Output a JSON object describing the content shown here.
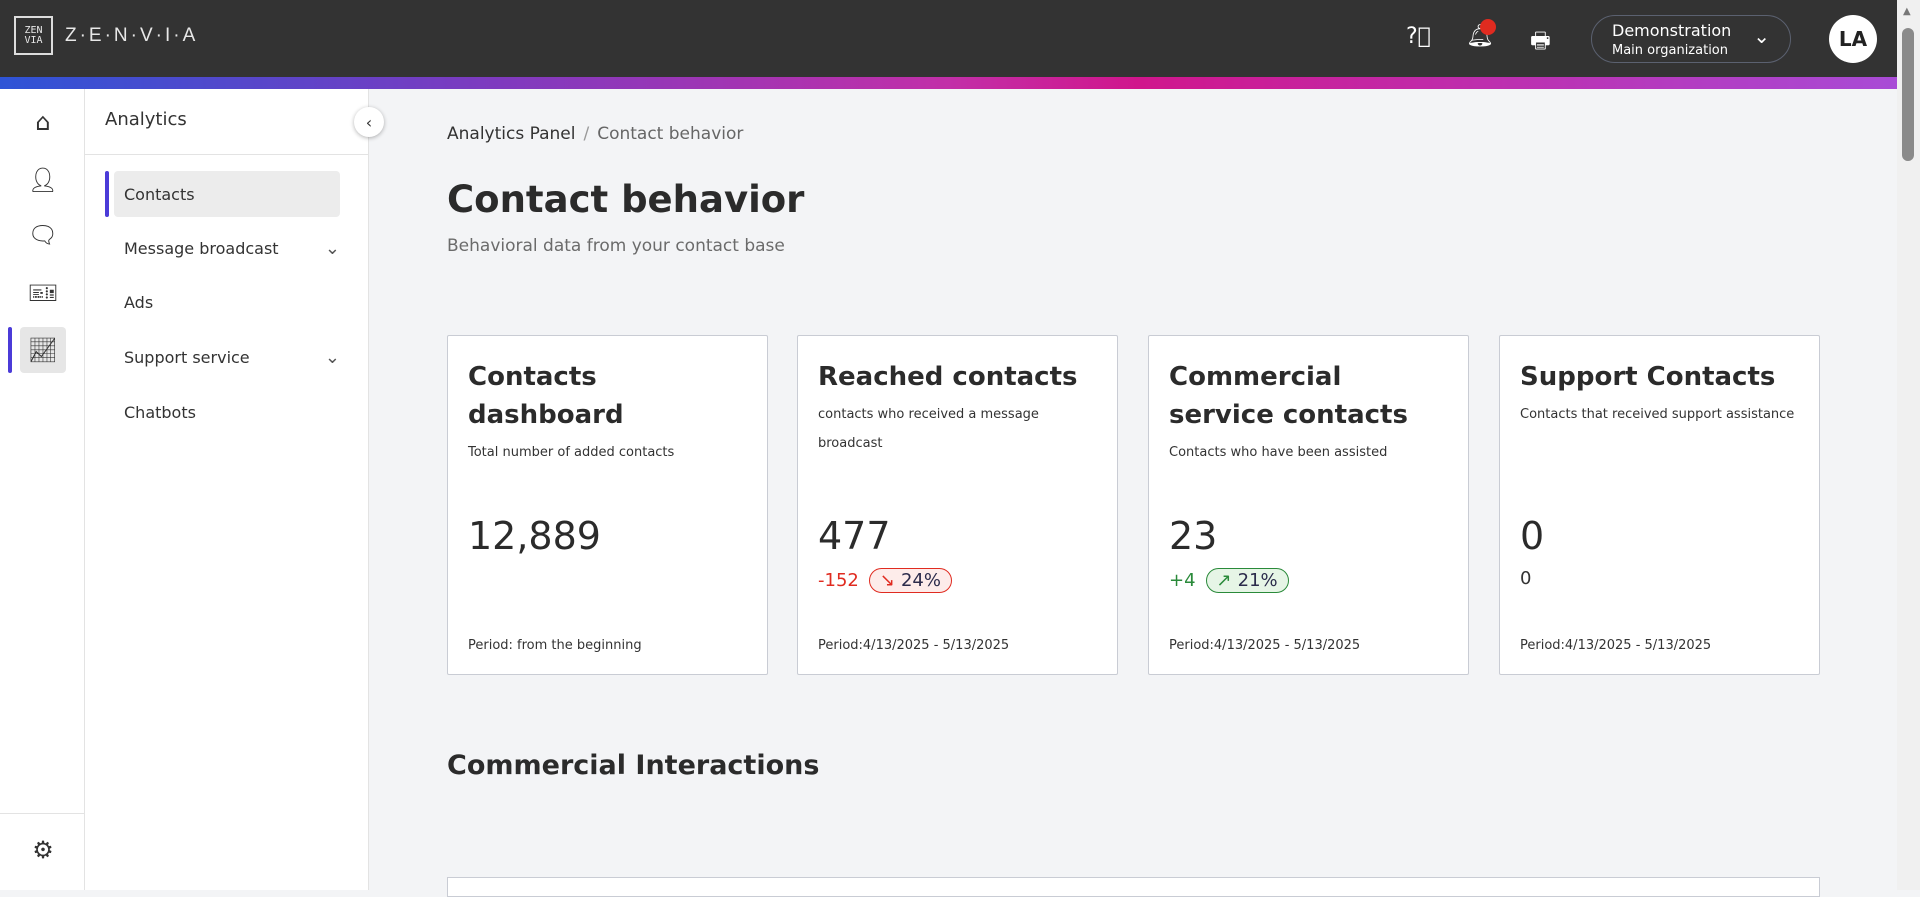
{
  "header": {
    "brand": "Z·E·N·V·I·A",
    "logo_mark": "ZEN VIA",
    "org_name": "Demonstration",
    "org_sub": "Main organization",
    "avatar": "LA",
    "icons": [
      "help-icon",
      "bell-icon",
      "printer-icon"
    ],
    "notification_color": "#e02b20"
  },
  "rail": {
    "items": [
      "home-icon",
      "user-icon",
      "chat-icon",
      "ticket-icon",
      "analytics-icon"
    ],
    "settings": "gear-icon"
  },
  "subnav": {
    "title": "Analytics",
    "items": [
      {
        "label": "Contacts",
        "active": true
      },
      {
        "label": "Message broadcast",
        "expandable": true
      },
      {
        "label": "Ads"
      },
      {
        "label": "Support service",
        "expandable": true
      },
      {
        "label": "Chatbots"
      }
    ]
  },
  "breadcrumb": {
    "parent": "Analytics Panel",
    "sep": "/",
    "current": "Contact behavior"
  },
  "page": {
    "title": "Contact behavior",
    "subtitle": "Behavioral data from your contact base",
    "section": "Commercial Interactions"
  },
  "cards": [
    {
      "title": "Contacts dashboard",
      "desc": "Total number of added contacts",
      "value": "12,889",
      "period": "Period: from the beginning"
    },
    {
      "title": "Reached contacts",
      "desc": "contacts who received a message broadcast",
      "value": "477",
      "delta": "-152",
      "pct": "24%",
      "trend": "down",
      "period": "Period:4/13/2025 - 5/13/2025"
    },
    {
      "title": "Commercial service contacts",
      "desc": "Contacts who have been assisted",
      "value": "23",
      "delta": "+4",
      "pct": "21%",
      "trend": "up",
      "period": "Period:4/13/2025 - 5/13/2025"
    },
    {
      "title": "Support Contacts",
      "desc": "Contacts that received support assistance",
      "value": "0",
      "delta": "0",
      "period": "Period:4/13/2025 - 5/13/2025"
    }
  ],
  "colors": {
    "accent": "#4b3bd8",
    "negative": "#e02b20",
    "positive": "#2a8a3a"
  }
}
